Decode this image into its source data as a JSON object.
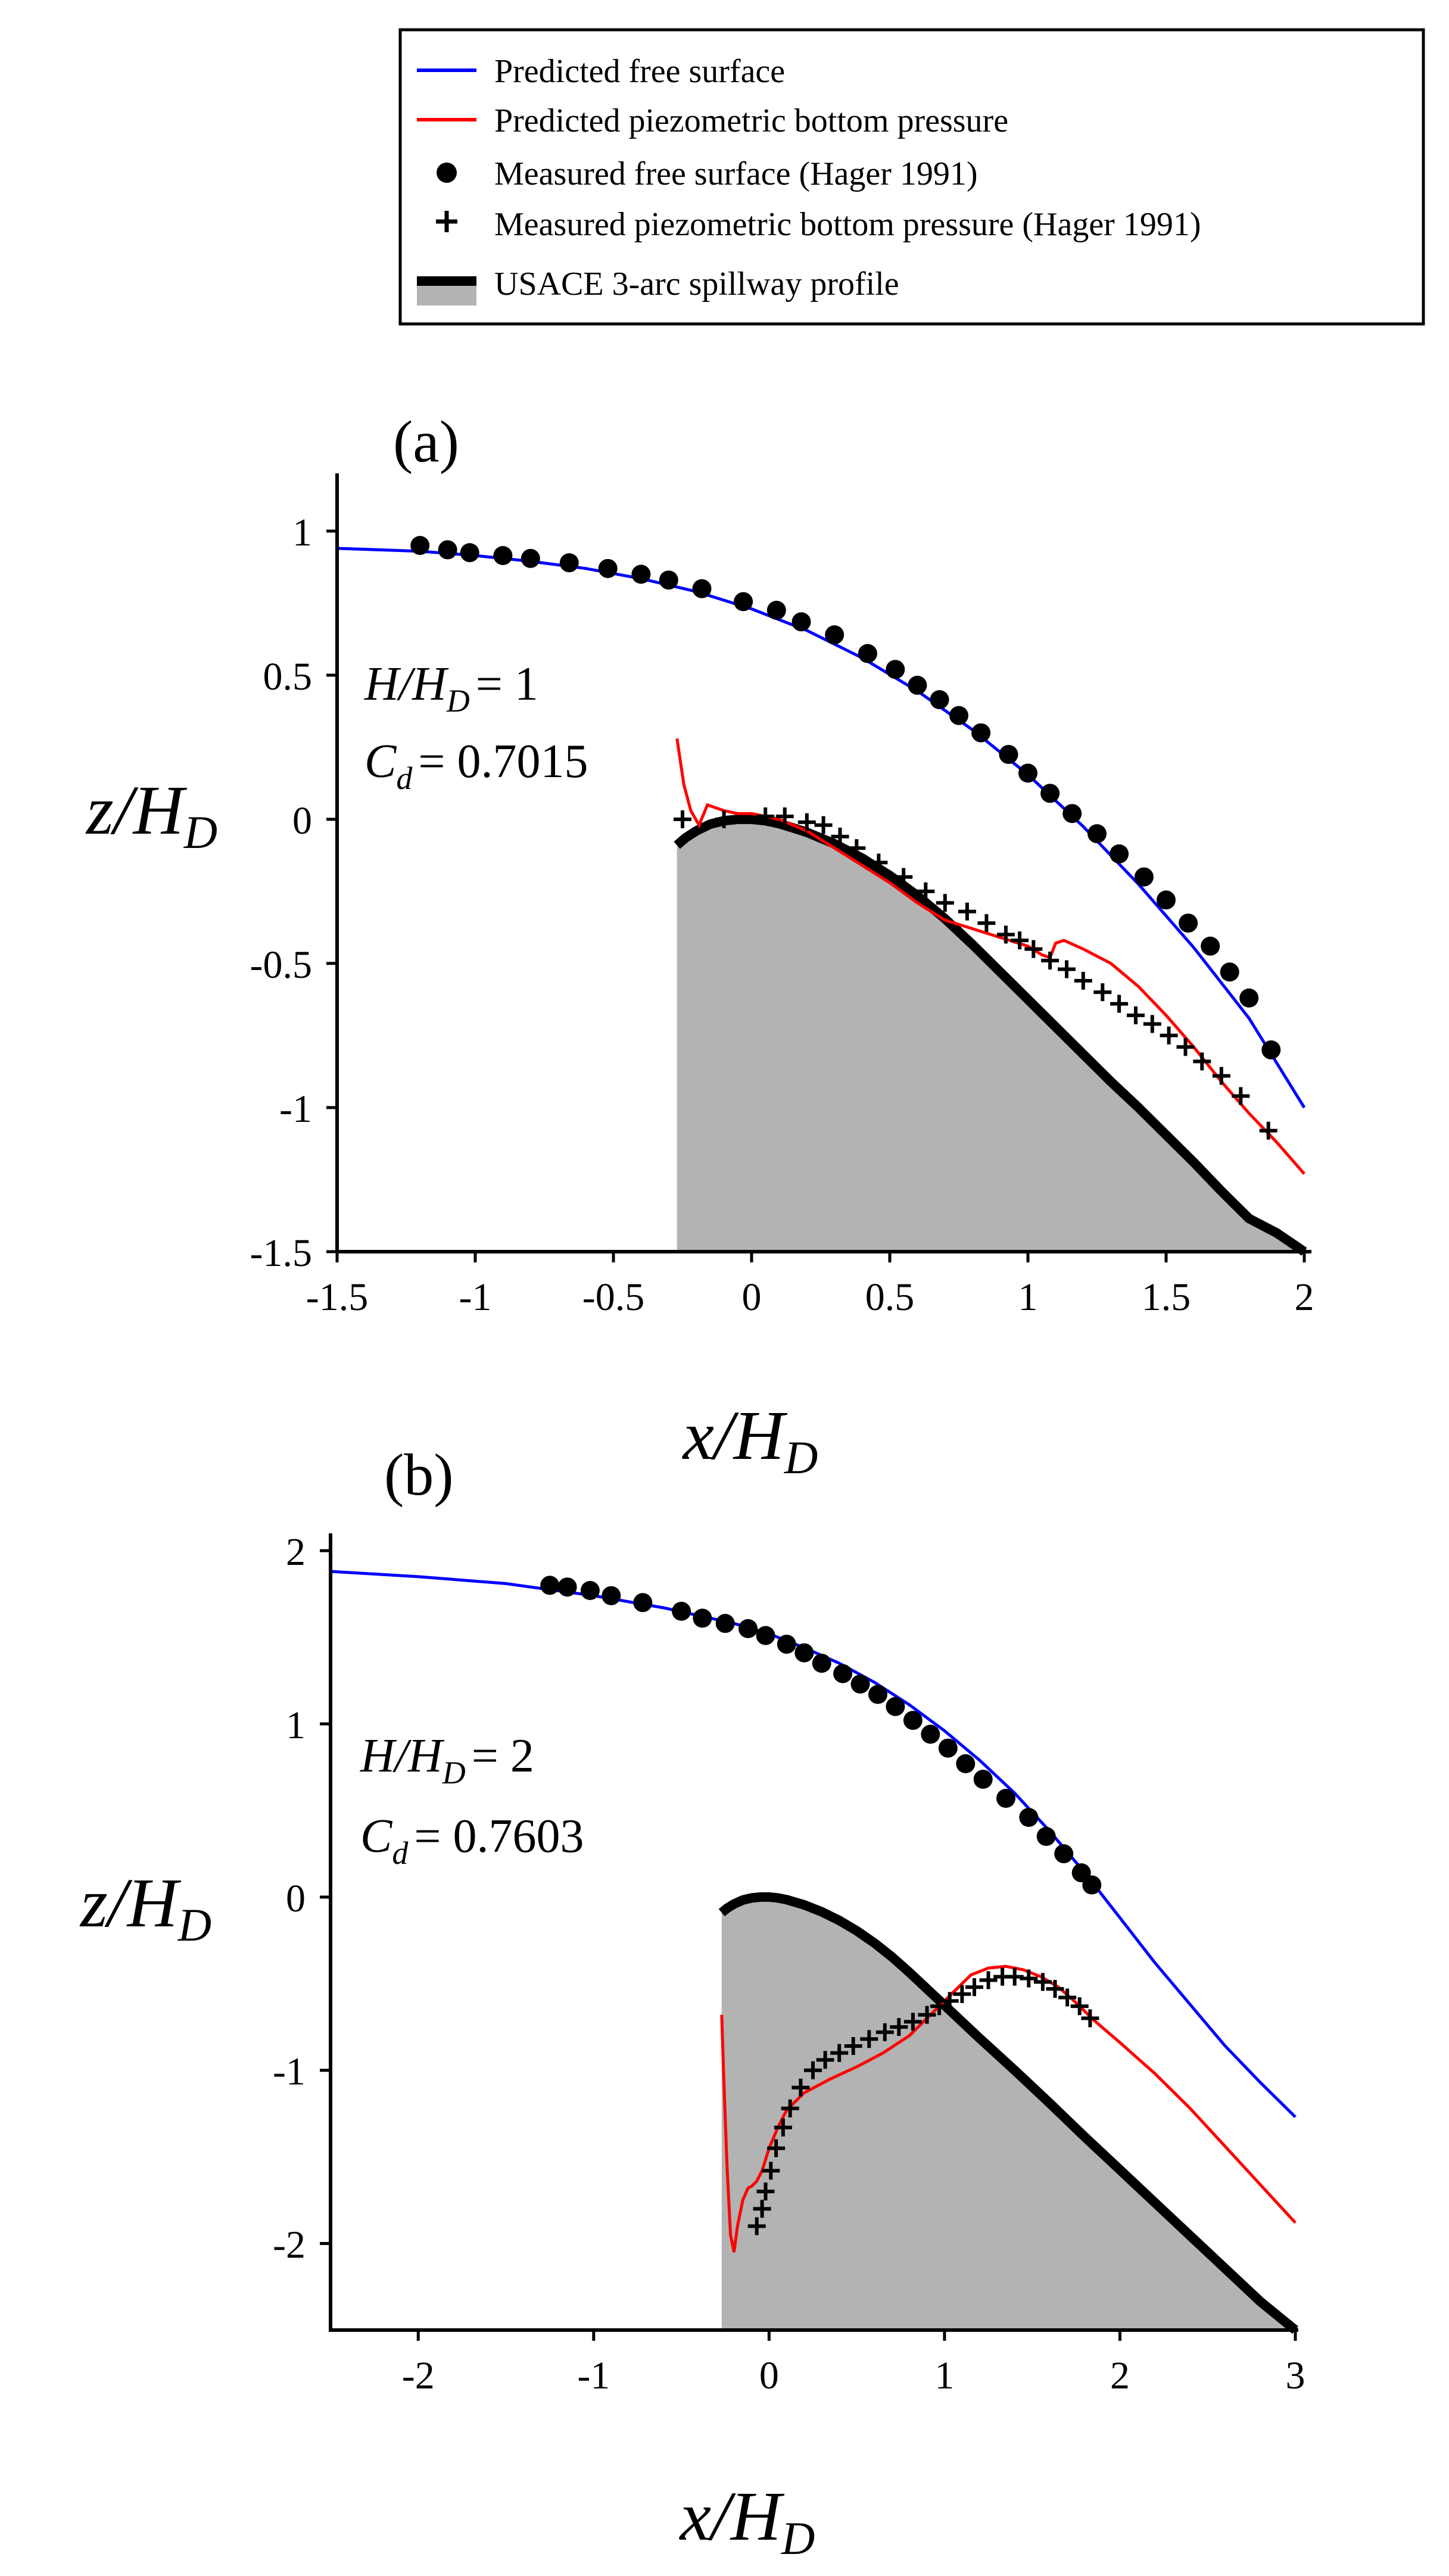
{
  "legend": {
    "entries": [
      {
        "label": "Predicted free surface",
        "kind": "line",
        "color": "#0000ff"
      },
      {
        "label": "Predicted piezometric bottom pressure",
        "kind": "line",
        "color": "#ff0000"
      },
      {
        "label": "Measured free surface (Hager 1991)",
        "kind": "dot",
        "color": "#000000"
      },
      {
        "label": "Measured piezometric bottom pressure (Hager 1991)",
        "kind": "plus",
        "color": "#000000"
      },
      {
        "label": "USACE 3-arc spillway profile",
        "kind": "profile",
        "color": "#000000",
        "fill": "#b3b3b3"
      }
    ]
  },
  "chart_data": [
    {
      "type": "line",
      "panel_label": "(a)",
      "annotation": {
        "h_lhs": "H/H",
        "h_sub": "D",
        "h_rhs": "= 1",
        "cd_lhs": "C",
        "cd_sub": "d",
        "cd_rhs": "= 0.7015"
      },
      "xlabel": {
        "main": "x/H",
        "sub": "D"
      },
      "ylabel": {
        "main": "z/H",
        "sub": "D"
      },
      "xlim": [
        -1.5,
        2
      ],
      "ylim": [
        -1.5,
        1.2
      ],
      "xticks": [
        -1.5,
        -1,
        -0.5,
        0,
        0.5,
        1,
        1.5,
        2
      ],
      "xtick_labels": [
        "-1.5",
        "-1",
        "-0.5",
        "0",
        "0.5",
        "1",
        "1.5",
        "2"
      ],
      "yticks": [
        -1.5,
        -1,
        -0.5,
        0,
        0.5,
        1
      ],
      "ytick_labels": [
        "-1.5",
        "-1",
        "-0.5",
        "0",
        "0.5",
        "1"
      ],
      "series": [
        {
          "key": "free_surface_pred",
          "type": "line",
          "color": "#0000ff",
          "x": [
            -1.5,
            -1.2,
            -1.0,
            -0.8,
            -0.6,
            -0.4,
            -0.2,
            0.0,
            0.2,
            0.4,
            0.6,
            0.8,
            1.0,
            1.2,
            1.4,
            1.6,
            1.8,
            2.0
          ],
          "y": [
            0.94,
            0.93,
            0.915,
            0.895,
            0.87,
            0.835,
            0.79,
            0.73,
            0.655,
            0.56,
            0.445,
            0.31,
            0.155,
            -0.025,
            -0.225,
            -0.445,
            -0.69,
            -1.0
          ]
        },
        {
          "key": "bottom_pressure_pred",
          "type": "line",
          "color": "#ff0000",
          "x": [
            -0.27,
            -0.245,
            -0.22,
            -0.19,
            -0.16,
            -0.13,
            -0.1,
            -0.05,
            0.0,
            0.1,
            0.2,
            0.3,
            0.4,
            0.5,
            0.6,
            0.7,
            0.8,
            0.9,
            1.0,
            1.05,
            1.08,
            1.1,
            1.13,
            1.2,
            1.3,
            1.4,
            1.5,
            1.6,
            1.7,
            1.8,
            1.9,
            2.0
          ],
          "y": [
            0.28,
            0.12,
            0.03,
            -0.02,
            0.05,
            0.04,
            0.03,
            0.02,
            0.02,
            0.0,
            -0.04,
            -0.1,
            -0.16,
            -0.22,
            -0.29,
            -0.35,
            -0.38,
            -0.41,
            -0.44,
            -0.47,
            -0.48,
            -0.43,
            -0.42,
            -0.45,
            -0.5,
            -0.58,
            -0.68,
            -0.79,
            -0.91,
            -1.02,
            -1.12,
            -1.23
          ]
        },
        {
          "key": "free_surface_meas",
          "type": "scatter",
          "marker": "dot",
          "color": "#000000",
          "x": [
            -1.2,
            -1.1,
            -1.02,
            -0.9,
            -0.8,
            -0.66,
            -0.52,
            -0.4,
            -0.3,
            -0.18,
            -0.03,
            0.09,
            0.18,
            0.3,
            0.42,
            0.52,
            0.6,
            0.68,
            0.75,
            0.83,
            0.93,
            1.0,
            1.08,
            1.16,
            1.25,
            1.33,
            1.42,
            1.5,
            1.58,
            1.66,
            1.73,
            1.8,
            1.88
          ],
          "y": [
            0.95,
            0.935,
            0.925,
            0.915,
            0.905,
            0.89,
            0.87,
            0.85,
            0.83,
            0.8,
            0.755,
            0.725,
            0.685,
            0.64,
            0.575,
            0.52,
            0.465,
            0.415,
            0.36,
            0.3,
            0.225,
            0.16,
            0.09,
            0.02,
            -0.05,
            -0.12,
            -0.2,
            -0.28,
            -0.36,
            -0.44,
            -0.53,
            -0.62,
            -0.8
          ]
        },
        {
          "key": "bottom_pressure_meas",
          "type": "scatter",
          "marker": "plus",
          "color": "#000000",
          "x": [
            -0.25,
            -0.1,
            0.05,
            0.12,
            0.2,
            0.26,
            0.32,
            0.38,
            0.46,
            0.55,
            0.63,
            0.7,
            0.78,
            0.85,
            0.92,
            0.97,
            1.02,
            1.08,
            1.14,
            1.2,
            1.27,
            1.33,
            1.39,
            1.45,
            1.51,
            1.57,
            1.63,
            1.7,
            1.77,
            1.87
          ],
          "y": [
            0.0,
            0.0,
            0.01,
            0.01,
            -0.01,
            -0.02,
            -0.06,
            -0.1,
            -0.15,
            -0.2,
            -0.25,
            -0.29,
            -0.32,
            -0.36,
            -0.4,
            -0.42,
            -0.45,
            -0.49,
            -0.52,
            -0.56,
            -0.6,
            -0.64,
            -0.68,
            -0.71,
            -0.75,
            -0.79,
            -0.84,
            -0.89,
            -0.96,
            -1.08
          ]
        },
        {
          "key": "spillway_profile",
          "type": "area",
          "color": "#000000",
          "fill": "#b3b3b3",
          "x": [
            -0.27,
            -0.24,
            -0.2,
            -0.15,
            -0.1,
            -0.05,
            0.0,
            0.05,
            0.1,
            0.15,
            0.2,
            0.3,
            0.4,
            0.5,
            0.6,
            0.7,
            0.8,
            0.9,
            1.0,
            1.1,
            1.2,
            1.3,
            1.4,
            1.5,
            1.6,
            1.7,
            1.8,
            1.9,
            2.0
          ],
          "y": [
            -0.09,
            -0.065,
            -0.04,
            -0.017,
            -0.005,
            0.0,
            0.0,
            -0.005,
            -0.015,
            -0.03,
            -0.045,
            -0.085,
            -0.135,
            -0.195,
            -0.265,
            -0.345,
            -0.435,
            -0.53,
            -0.625,
            -0.72,
            -0.815,
            -0.91,
            -1.0,
            -1.095,
            -1.19,
            -1.29,
            -1.385,
            -1.435,
            -1.5
          ]
        }
      ]
    },
    {
      "type": "line",
      "panel_label": "(b)",
      "annotation": {
        "h_lhs": "H/H",
        "h_sub": "D",
        "h_rhs": "= 2",
        "cd_lhs": "C",
        "cd_sub": "d",
        "cd_rhs": "= 0.7603"
      },
      "xlabel": {
        "main": "x/H",
        "sub": "D"
      },
      "ylabel": {
        "main": "z/H",
        "sub": "D"
      },
      "xlim": [
        -2.5,
        3
      ],
      "ylim": [
        -2.5,
        2.1
      ],
      "xticks": [
        -2,
        -1,
        0,
        1,
        2,
        3
      ],
      "xtick_labels": [
        "-2",
        "-1",
        "0",
        "1",
        "2",
        "3"
      ],
      "yticks": [
        -2,
        -1,
        0,
        1,
        2
      ],
      "ytick_labels": [
        "-2",
        "-1",
        "0",
        "1",
        "2"
      ],
      "series": [
        {
          "key": "free_surface_pred",
          "type": "line",
          "color": "#0000ff",
          "x": [
            -2.5,
            -2.0,
            -1.5,
            -1.0,
            -0.6,
            -0.2,
            0.0,
            0.2,
            0.4,
            0.6,
            0.8,
            1.0,
            1.2,
            1.4,
            1.6,
            1.8,
            2.0,
            2.2,
            2.4,
            2.6,
            2.8,
            3.0
          ],
          "y": [
            1.88,
            1.85,
            1.81,
            1.74,
            1.67,
            1.58,
            1.52,
            1.44,
            1.35,
            1.24,
            1.11,
            0.96,
            0.79,
            0.6,
            0.38,
            0.14,
            -0.12,
            -0.38,
            -0.62,
            -0.86,
            -1.07,
            -1.27
          ]
        },
        {
          "key": "bottom_pressure_pred",
          "type": "line",
          "color": "#ff0000",
          "x": [
            -0.27,
            -0.26,
            -0.24,
            -0.22,
            -0.2,
            -0.18,
            -0.15,
            -0.12,
            -0.1,
            -0.07,
            -0.04,
            0.0,
            0.05,
            0.1,
            0.2,
            0.35,
            0.5,
            0.65,
            0.8,
            0.95,
            1.05,
            1.15,
            1.25,
            1.35,
            1.45,
            1.55,
            1.65,
            1.75,
            1.85,
            2.0,
            2.2,
            2.4,
            2.6,
            2.8,
            3.0
          ],
          "y": [
            -0.68,
            -1.0,
            -1.55,
            -1.95,
            -2.05,
            -1.9,
            -1.75,
            -1.68,
            -1.67,
            -1.64,
            -1.58,
            -1.45,
            -1.33,
            -1.23,
            -1.13,
            -1.05,
            -0.98,
            -0.9,
            -0.8,
            -0.65,
            -0.55,
            -0.45,
            -0.41,
            -0.4,
            -0.42,
            -0.46,
            -0.52,
            -0.61,
            -0.71,
            -0.84,
            -1.02,
            -1.22,
            -1.44,
            -1.66,
            -1.88
          ]
        },
        {
          "key": "free_surface_meas",
          "type": "scatter",
          "marker": "dot",
          "color": "#000000",
          "x": [
            -1.25,
            -1.15,
            -1.02,
            -0.9,
            -0.72,
            -0.5,
            -0.38,
            -0.25,
            -0.12,
            -0.02,
            0.1,
            0.2,
            0.3,
            0.42,
            0.52,
            0.62,
            0.72,
            0.82,
            0.92,
            1.02,
            1.12,
            1.22,
            1.35,
            1.48,
            1.58,
            1.68,
            1.78,
            1.84
          ],
          "y": [
            1.8,
            1.79,
            1.77,
            1.74,
            1.7,
            1.65,
            1.61,
            1.58,
            1.55,
            1.51,
            1.46,
            1.41,
            1.35,
            1.29,
            1.23,
            1.17,
            1.1,
            1.02,
            0.94,
            0.86,
            0.77,
            0.68,
            0.57,
            0.46,
            0.35,
            0.25,
            0.14,
            0.07
          ]
        },
        {
          "key": "bottom_pressure_meas",
          "type": "scatter",
          "marker": "plus",
          "color": "#000000",
          "x": [
            -0.07,
            -0.04,
            -0.02,
            0.01,
            0.04,
            0.08,
            0.12,
            0.18,
            0.25,
            0.32,
            0.4,
            0.48,
            0.57,
            0.66,
            0.74,
            0.82,
            0.9,
            0.97,
            1.03,
            1.1,
            1.17,
            1.25,
            1.33,
            1.4,
            1.48,
            1.56,
            1.63,
            1.7,
            1.77,
            1.83
          ],
          "y": [
            -1.9,
            -1.8,
            -1.7,
            -1.58,
            -1.45,
            -1.33,
            -1.22,
            -1.1,
            -1.0,
            -0.94,
            -0.9,
            -0.86,
            -0.82,
            -0.78,
            -0.75,
            -0.72,
            -0.68,
            -0.63,
            -0.6,
            -0.56,
            -0.52,
            -0.48,
            -0.46,
            -0.46,
            -0.47,
            -0.49,
            -0.53,
            -0.58,
            -0.63,
            -0.7
          ]
        },
        {
          "key": "spillway_profile",
          "type": "area",
          "color": "#000000",
          "fill": "#b3b3b3",
          "x": [
            -0.27,
            -0.24,
            -0.2,
            -0.15,
            -0.1,
            -0.05,
            0.0,
            0.05,
            0.1,
            0.15,
            0.2,
            0.3,
            0.4,
            0.5,
            0.6,
            0.7,
            0.8,
            0.9,
            1.0,
            1.2,
            1.4,
            1.6,
            1.8,
            2.0,
            2.2,
            2.4,
            2.6,
            2.8,
            3.0
          ],
          "y": [
            -0.09,
            -0.065,
            -0.04,
            -0.017,
            -0.005,
            0.0,
            0.0,
            -0.005,
            -0.015,
            -0.03,
            -0.045,
            -0.085,
            -0.135,
            -0.195,
            -0.265,
            -0.345,
            -0.435,
            -0.53,
            -0.625,
            -0.815,
            -1.0,
            -1.19,
            -1.385,
            -1.575,
            -1.765,
            -1.955,
            -2.145,
            -2.335,
            -2.5
          ]
        }
      ]
    }
  ]
}
